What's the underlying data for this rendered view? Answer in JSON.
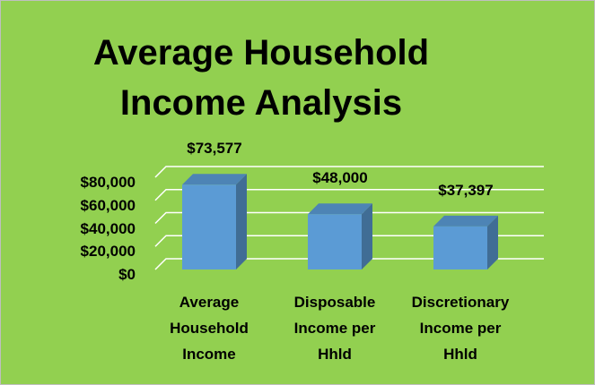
{
  "chart_data": {
    "type": "bar3d",
    "title": "Average Household Income Analysis",
    "categories": [
      "Average Household Income",
      "Disposable Income per Hhld",
      "Discretionary Income per Hhld"
    ],
    "values": [
      73577,
      48000,
      37397
    ],
    "value_labels": [
      "$73,577",
      "$48,000",
      "$37,397"
    ],
    "color": "#5b9bd5",
    "ylim": [
      0,
      80000
    ],
    "yticks": [
      {
        "value": 0,
        "label": "$0"
      },
      {
        "value": 20000,
        "label": "$20,000"
      },
      {
        "value": 40000,
        "label": "$40,000"
      },
      {
        "value": 60000,
        "label": "$60,000"
      },
      {
        "value": 80000,
        "label": "$80,000"
      }
    ],
    "grid": true
  }
}
